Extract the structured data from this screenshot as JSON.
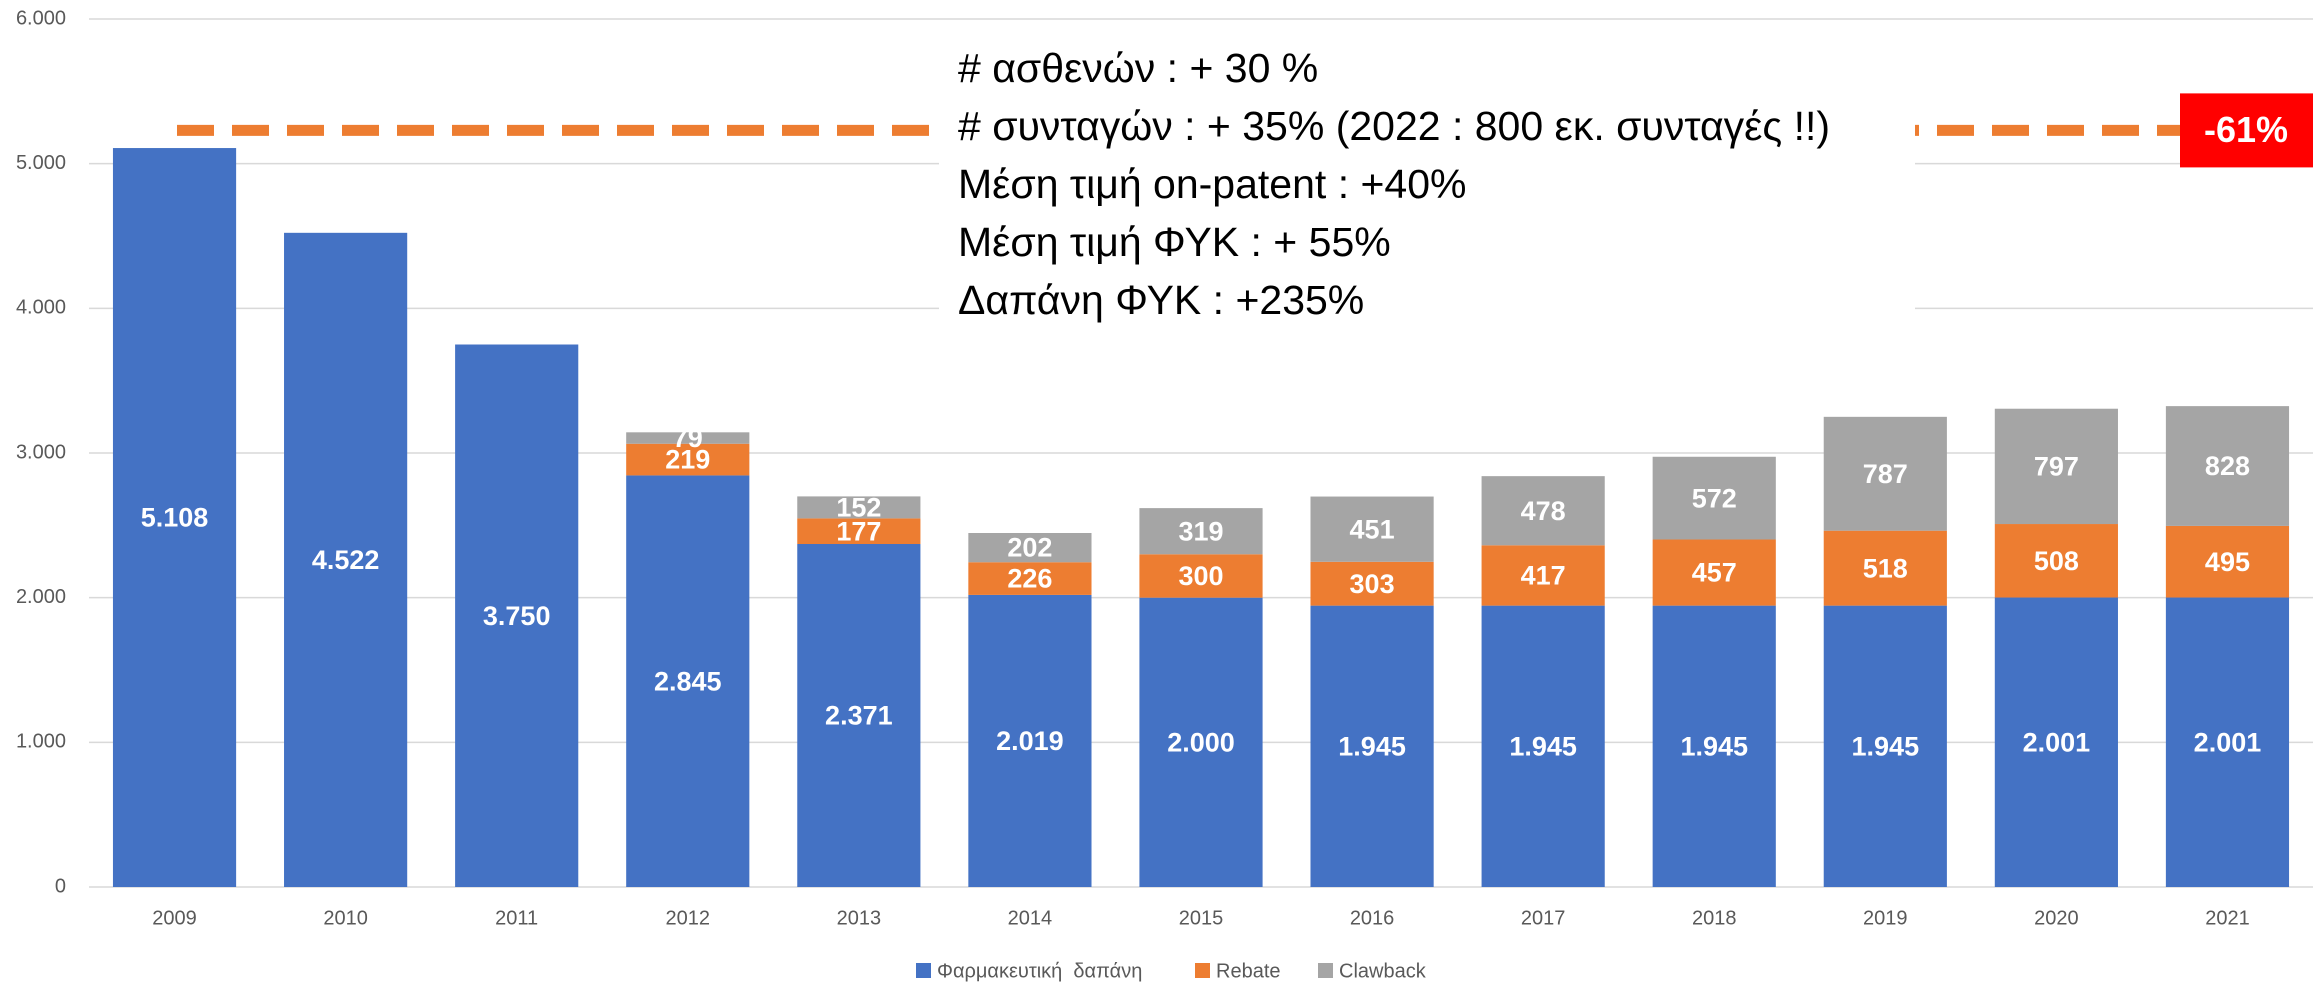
{
  "chart_data": {
    "type": "stacked_bar",
    "categories": [
      "2009",
      "2010",
      "2011",
      "2012",
      "2013",
      "2014",
      "2015",
      "2016",
      "2017",
      "2018",
      "2019",
      "2020",
      "2021"
    ],
    "series": [
      {
        "name": "Φαρμακευτική  δαπάνη",
        "color": "#4472c4",
        "values": [
          5108,
          4522,
          3750,
          2845,
          2371,
          2019,
          2000,
          1945,
          1945,
          1945,
          1945,
          2001,
          2001
        ],
        "value_labels": [
          "5.108",
          "4.522",
          "3.750",
          "2.845",
          "2.371",
          "2.019",
          "2.000",
          "1.945",
          "1.945",
          "1.945",
          "1.945",
          "2.001",
          "2.001"
        ]
      },
      {
        "name": "Rebate",
        "color": "#ed7d31",
        "values": [
          null,
          null,
          null,
          219,
          177,
          226,
          300,
          303,
          417,
          457,
          518,
          508,
          495
        ]
      },
      {
        "name": "Clawback",
        "color": "#a5a5a5",
        "values": [
          null,
          null,
          null,
          79,
          152,
          202,
          319,
          451,
          478,
          572,
          787,
          797,
          828
        ]
      }
    ],
    "ylim": [
      0,
      6000
    ],
    "yticks": [
      0,
      {
        "value": 1000,
        "label": "1.000"
      },
      {
        "value": 2000,
        "label": "2.000"
      },
      {
        "value": 3000,
        "label": "3.000"
      },
      {
        "value": 4000,
        "label": "4.000"
      },
      {
        "value": 5000,
        "label": "5.000"
      },
      {
        "value": 6000,
        "label": "6.000"
      }
    ],
    "grid": true,
    "legend": "bottom",
    "reference_line": {
      "value": 5230,
      "label": "-61%",
      "color": "#ed7d31",
      "label_color": "#ff0000"
    },
    "annotations": [
      "# ασθενών : + 30 %",
      "# συνταγών : + 35% (2022 : 800 εκ. συνταγές !!)",
      "Μέση τιμή on-patent : +40%",
      "Μέση τιμή ΦΥΚ : + 55%",
      "Δαπάνη ΦΥΚ : +235%"
    ]
  }
}
